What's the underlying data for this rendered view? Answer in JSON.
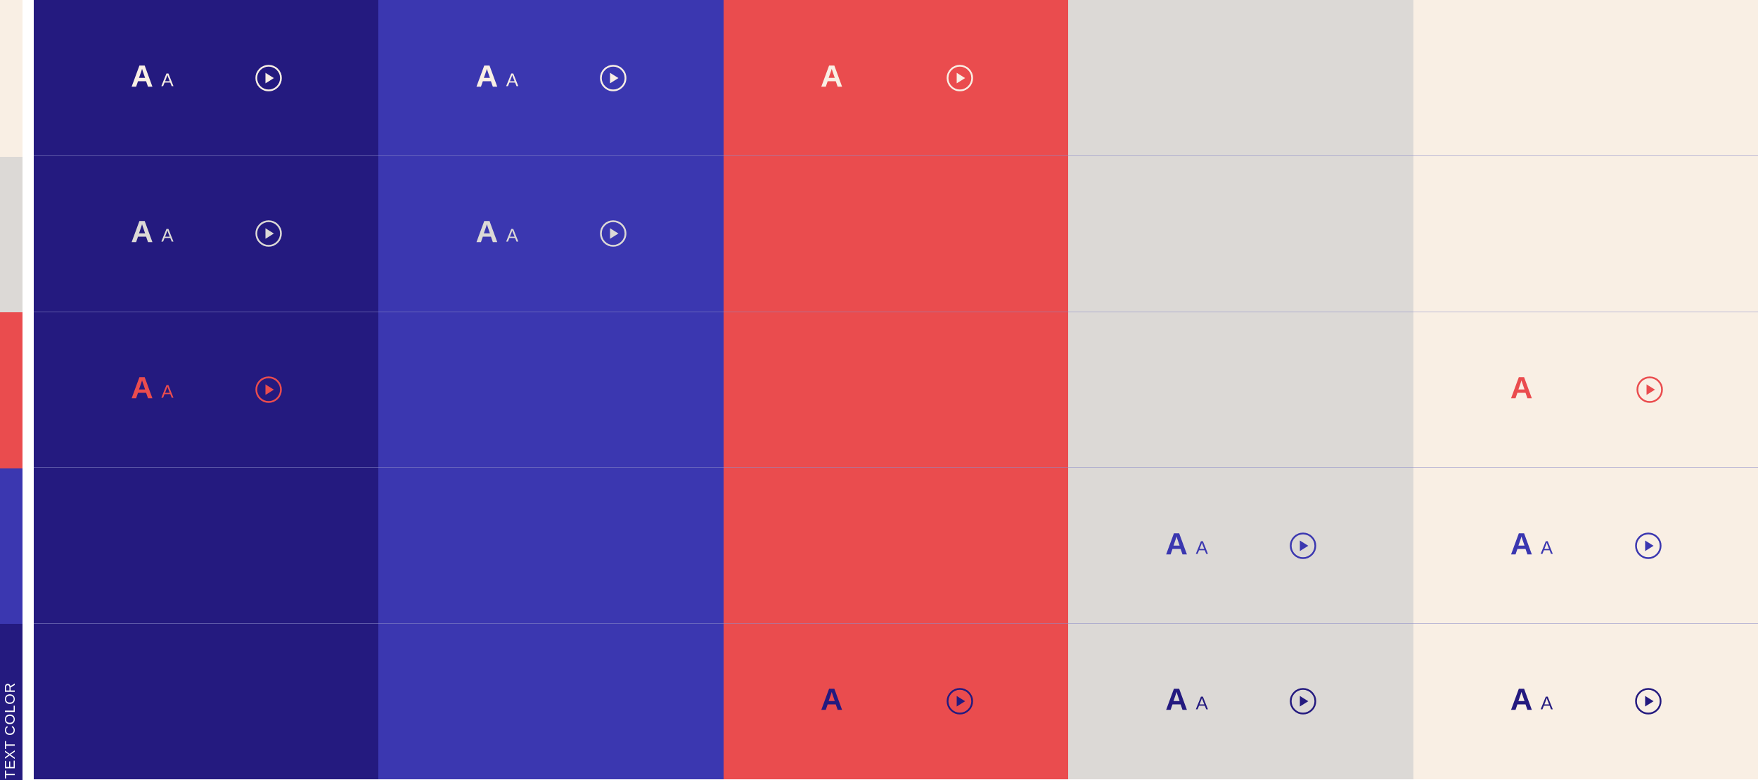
{
  "legend": {
    "label": "TEXT COLOR"
  },
  "colors": {
    "navy": "#241a7f",
    "indigo": "#3b37b0",
    "coral": "#ea4c4e",
    "gray": "#dcd9d6",
    "cream": "#f9efe4"
  },
  "background_columns": [
    "navy",
    "indigo",
    "coral",
    "gray",
    "cream"
  ],
  "text_color_rows": [
    "cream",
    "gray",
    "coral",
    "indigo",
    "navy"
  ],
  "cells": [
    [
      "aa",
      "aa",
      "a",
      "none",
      "none"
    ],
    [
      "aa",
      "aa",
      "none",
      "none",
      "none"
    ],
    [
      "aa",
      "none",
      "none",
      "none",
      "a"
    ],
    [
      "none",
      "none",
      "none",
      "aa",
      "aa"
    ],
    [
      "none",
      "none",
      "a",
      "aa",
      "aa"
    ]
  ],
  "glyphs": {
    "large": "A",
    "small": "A"
  },
  "icon": "play-circle-icon"
}
